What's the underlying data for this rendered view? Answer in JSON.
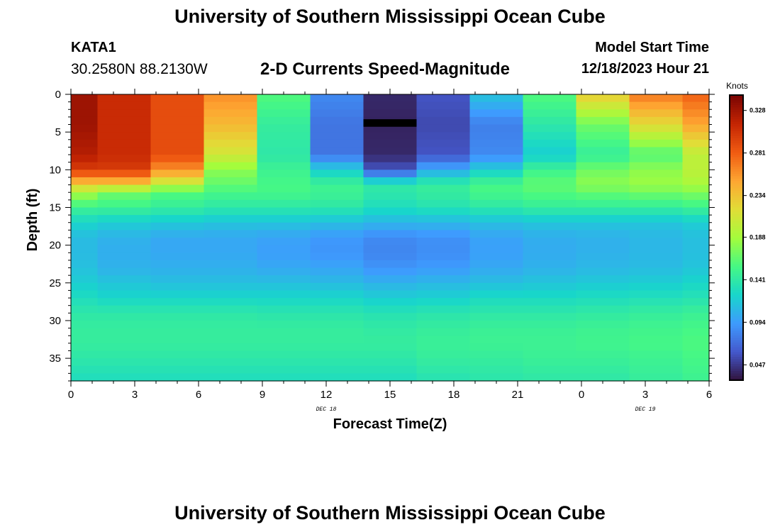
{
  "header": {
    "title": "University of Southern Mississippi Ocean Cube",
    "station_id": "KATA1",
    "coords": "30.2580N  88.2130W",
    "subtitle": "2-D Currents Speed-Magnitude",
    "model_start_label": "Model Start Time",
    "model_start_value": "12/18/2023 Hour 21"
  },
  "footer": {
    "title": "University of Southern Mississippi Ocean Cube"
  },
  "chart_data": {
    "type": "heatmap",
    "title": "2-D Currents Speed-Magnitude",
    "xlabel": "Forecast Time(Z)",
    "ylabel": "Depth (ft)",
    "x_ticks": [
      "0",
      "3",
      "6",
      "9",
      "12",
      "15",
      "18",
      "21",
      "0",
      "3",
      "6"
    ],
    "x_date_labels": [
      {
        "label": "DEC 18",
        "at_tick": 4
      },
      {
        "label": "DEC 19",
        "at_tick": 9
      }
    ],
    "y_ticks": [
      0,
      5,
      10,
      15,
      20,
      25,
      30,
      35
    ],
    "ylim": [
      0,
      38
    ],
    "x_columns_hours": [
      0,
      2.5,
      5,
      7.5,
      10,
      12.5,
      15,
      17.5,
      20,
      22.5,
      25,
      27.5,
      30
    ],
    "depth_profiles": {
      "depths_ft": [
        0,
        4,
        8,
        10,
        12,
        13,
        15,
        17,
        19,
        21,
        23,
        25,
        27,
        29,
        31,
        33,
        35,
        38
      ],
      "columns": [
        [
          0.33,
          0.33,
          0.32,
          0.3,
          0.23,
          0.19,
          0.15,
          0.125,
          0.11,
          0.11,
          0.113,
          0.12,
          0.13,
          0.14,
          0.145,
          0.145,
          0.14,
          0.13
        ],
        [
          0.31,
          0.31,
          0.31,
          0.3,
          0.23,
          0.17,
          0.15,
          0.12,
          0.105,
          0.103,
          0.105,
          0.115,
          0.125,
          0.14,
          0.145,
          0.145,
          0.14,
          0.13
        ],
        [
          0.29,
          0.29,
          0.29,
          0.26,
          0.2,
          0.16,
          0.145,
          0.118,
          0.1,
          0.1,
          0.104,
          0.112,
          0.125,
          0.14,
          0.145,
          0.145,
          0.14,
          0.13
        ],
        [
          0.26,
          0.24,
          0.21,
          0.18,
          0.165,
          0.155,
          0.14,
          0.115,
          0.1,
          0.1,
          0.104,
          0.112,
          0.125,
          0.14,
          0.145,
          0.145,
          0.14,
          0.13
        ],
        [
          0.16,
          0.145,
          0.14,
          0.15,
          0.155,
          0.155,
          0.14,
          0.115,
          0.097,
          0.095,
          0.1,
          0.112,
          0.125,
          0.138,
          0.145,
          0.145,
          0.14,
          0.13
        ],
        [
          0.085,
          0.075,
          0.075,
          0.12,
          0.15,
          0.15,
          0.14,
          0.112,
          0.092,
          0.09,
          0.098,
          0.11,
          0.125,
          0.138,
          0.145,
          0.145,
          0.14,
          0.13
        ],
        [
          0.04,
          0.038,
          0.04,
          0.06,
          0.14,
          0.14,
          0.13,
          0.108,
          0.085,
          0.083,
          0.09,
          0.105,
          0.12,
          0.135,
          0.142,
          0.145,
          0.14,
          0.13
        ],
        [
          0.06,
          0.055,
          0.06,
          0.1,
          0.145,
          0.145,
          0.135,
          0.108,
          0.088,
          0.087,
          0.093,
          0.108,
          0.122,
          0.138,
          0.145,
          0.148,
          0.145,
          0.135
        ],
        [
          0.115,
          0.08,
          0.085,
          0.12,
          0.155,
          0.155,
          0.14,
          0.112,
          0.097,
          0.096,
          0.1,
          0.112,
          0.128,
          0.14,
          0.148,
          0.15,
          0.145,
          0.138
        ],
        [
          0.16,
          0.14,
          0.12,
          0.15,
          0.165,
          0.16,
          0.145,
          0.115,
          0.103,
          0.102,
          0.105,
          0.115,
          0.128,
          0.14,
          0.148,
          0.15,
          0.148,
          0.14
        ],
        [
          0.23,
          0.17,
          0.145,
          0.17,
          0.18,
          0.165,
          0.145,
          0.115,
          0.105,
          0.105,
          0.108,
          0.118,
          0.13,
          0.142,
          0.15,
          0.152,
          0.148,
          0.14
        ],
        [
          0.27,
          0.22,
          0.16,
          0.18,
          0.185,
          0.17,
          0.145,
          0.115,
          0.108,
          0.108,
          0.11,
          0.12,
          0.132,
          0.145,
          0.152,
          0.155,
          0.15,
          0.145
        ],
        [
          0.28,
          0.25,
          0.2,
          0.2,
          0.19,
          0.175,
          0.15,
          0.12,
          0.112,
          0.112,
          0.115,
          0.125,
          0.135,
          0.148,
          0.155,
          0.158,
          0.155,
          0.15
        ]
      ]
    },
    "black_band": {
      "depth_top_ft": 3.3,
      "depth_bottom_ft": 4.3,
      "hour_start": 13.75,
      "hour_end": 16.25
    },
    "colorbar": {
      "title": "Knots",
      "min": 0.03,
      "max": 0.345,
      "tick_labels": [
        "0.328",
        "0.281",
        "0.234",
        "0.188",
        "0.141",
        "0.094",
        "0.047"
      ],
      "tick_values": [
        0.328,
        0.281,
        0.234,
        0.188,
        0.141,
        0.094,
        0.047
      ],
      "colors": [
        "#30123b",
        "#4458cc",
        "#3e9bfe",
        "#18d6cb",
        "#46f884",
        "#a4fc3c",
        "#e1dd37",
        "#fea632",
        "#f05b12",
        "#c42503",
        "#7a0403"
      ]
    }
  }
}
